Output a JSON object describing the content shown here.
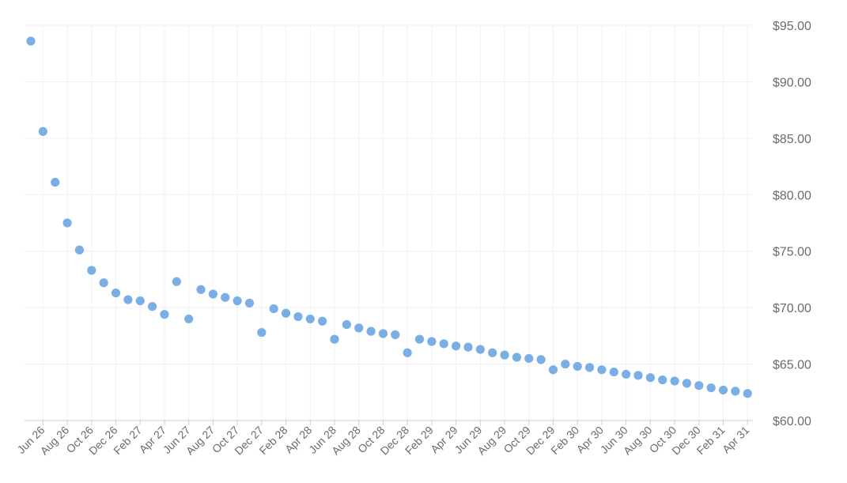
{
  "chart_data": {
    "type": "scatter",
    "title": "",
    "xlabel": "",
    "ylabel": "",
    "ylim": [
      60,
      95
    ],
    "y_ticks": [
      "$60.00",
      "$65.00",
      "$70.00",
      "$75.00",
      "$80.00",
      "$85.00",
      "$90.00",
      "$95.00"
    ],
    "y_axis_side": "right",
    "grid": true,
    "legend": "none",
    "point_color": "#7aaee6",
    "x_ticks": [
      "Jun 26",
      "Aug 26",
      "Oct 26",
      "Dec 26",
      "Feb 27",
      "Apr 27",
      "Jun 27",
      "Aug 27",
      "Oct 27",
      "Dec 27",
      "Feb 28",
      "Apr 28",
      "Jun 28",
      "Aug 28",
      "Oct 28",
      "Dec 28",
      "Feb 29",
      "Apr 29",
      "Jun 29",
      "Aug 29",
      "Oct 29",
      "Dec 29",
      "Feb 30",
      "Apr 30",
      "Jun 30",
      "Aug 30",
      "Oct 30",
      "Dec 30",
      "Feb 31",
      "Apr 31"
    ],
    "x": [
      "May 26",
      "Jun 26",
      "Jul 26",
      "Aug 26",
      "Sep 26",
      "Oct 26",
      "Nov 26",
      "Dec 26",
      "Jan 27",
      "Feb 27",
      "Mar 27",
      "Apr 27",
      "May 27",
      "Jun 27",
      "Jul 27",
      "Aug 27",
      "Sep 27",
      "Oct 27",
      "Nov 27",
      "Dec 27",
      "Jan 28",
      "Feb 28",
      "Mar 28",
      "Apr 28",
      "May 28",
      "Jun 28",
      "Jul 28",
      "Aug 28",
      "Sep 28",
      "Oct 28",
      "Nov 28",
      "Dec 28",
      "Jan 29",
      "Feb 29",
      "Mar 29",
      "Apr 29",
      "May 29",
      "Jun 29",
      "Jul 29",
      "Aug 29",
      "Sep 29",
      "Oct 29",
      "Nov 29",
      "Dec 29",
      "Jan 30",
      "Feb 30",
      "Mar 30",
      "Apr 30",
      "May 30",
      "Jun 30",
      "Jul 30",
      "Aug 30",
      "Sep 30",
      "Oct 30",
      "Nov 30",
      "Dec 30",
      "Jan 31",
      "Feb 31",
      "Mar 31",
      "Apr 31"
    ],
    "values": [
      93.6,
      85.6,
      81.1,
      77.5,
      75.1,
      73.3,
      72.2,
      71.3,
      70.7,
      70.6,
      70.1,
      69.4,
      72.3,
      69.0,
      71.6,
      71.2,
      70.9,
      70.6,
      70.4,
      67.8,
      69.9,
      69.5,
      69.2,
      69.0,
      68.8,
      67.2,
      68.5,
      68.2,
      67.9,
      67.7,
      67.6,
      66.0,
      67.2,
      67.0,
      66.8,
      66.6,
      66.5,
      66.3,
      66.0,
      65.8,
      65.6,
      65.5,
      65.4,
      64.5,
      65.0,
      64.8,
      64.7,
      64.5,
      64.3,
      64.1,
      64.0,
      63.8,
      63.6,
      63.5,
      63.3,
      63.1,
      62.9,
      62.7,
      62.6,
      62.4
    ]
  }
}
